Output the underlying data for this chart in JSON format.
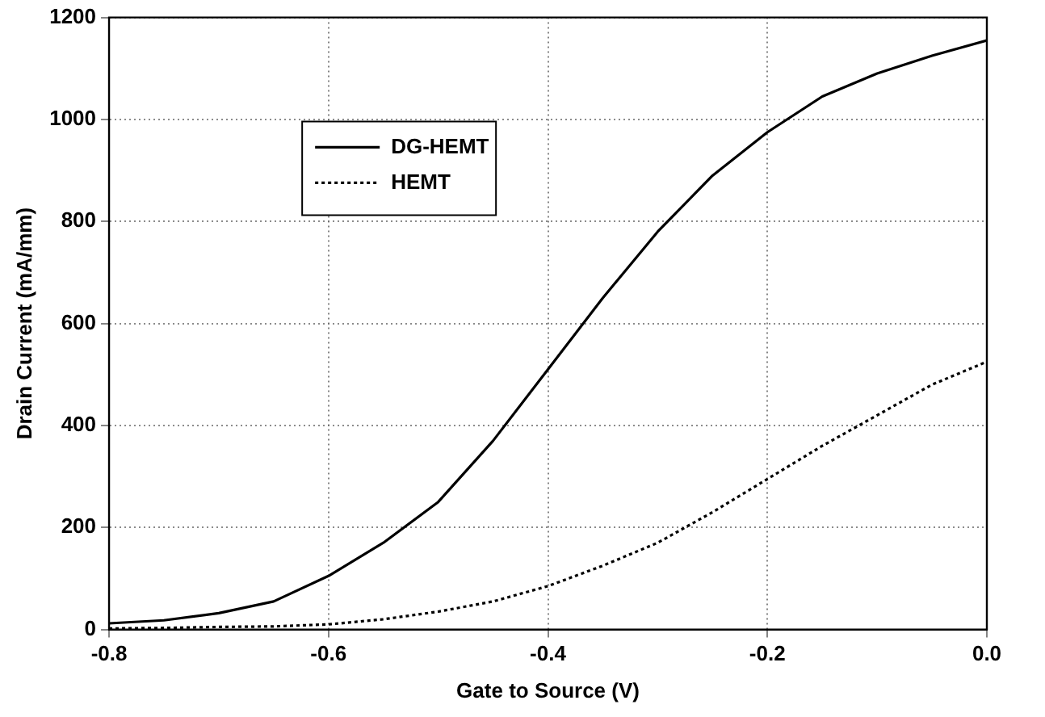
{
  "chart_data": {
    "type": "line",
    "xlabel": "Gate to Source (V)",
    "ylabel": "Drain Current (mA/mm)",
    "x": [
      -0.8,
      -0.75,
      -0.7,
      -0.65,
      -0.6,
      -0.55,
      -0.5,
      -0.45,
      -0.4,
      -0.35,
      -0.3,
      -0.25,
      -0.2,
      -0.15,
      -0.1,
      -0.05,
      0.0
    ],
    "series": [
      {
        "name": "DG-HEMT",
        "color": "#000000",
        "line_style": "solid",
        "values": [
          12,
          18,
          32,
          55,
          105,
          170,
          250,
          370,
          510,
          650,
          780,
          890,
          975,
          1045,
          1090,
          1125,
          1155
        ]
      },
      {
        "name": "HEMT",
        "color": "#000000",
        "line_style": "dotted",
        "values": [
          2,
          3,
          5,
          6,
          10,
          20,
          35,
          55,
          85,
          125,
          170,
          230,
          295,
          360,
          420,
          480,
          525
        ]
      }
    ],
    "xlim": [
      -0.8,
      0.0
    ],
    "xticks": [
      {
        "value": -0.8,
        "label": "-0.8"
      },
      {
        "value": -0.6,
        "label": "-0.6"
      },
      {
        "value": -0.4,
        "label": "-0.4"
      },
      {
        "value": -0.2,
        "label": "-0.2"
      },
      {
        "value": 0.0,
        "label": "0.0"
      }
    ],
    "ylim": [
      0,
      1200
    ],
    "yticks": [
      0,
      200,
      400,
      600,
      800,
      1000,
      1200
    ],
    "grid": true,
    "legend": "top left",
    "marker": "none"
  }
}
